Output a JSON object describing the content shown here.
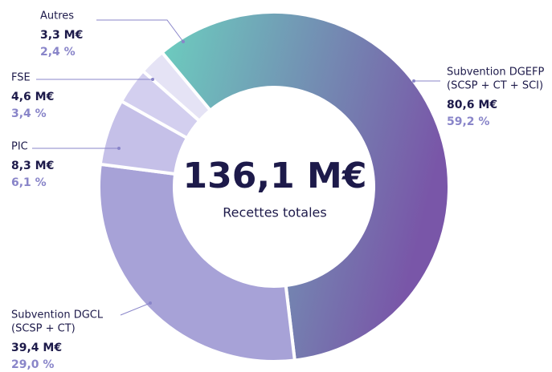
{
  "chart_data": {
    "type": "pie",
    "donut": true,
    "total": 136.1,
    "total_label": "136,1 M€",
    "subtitle": "Recettes totales",
    "categories": [
      [
        "Subvention DGEFP",
        "(SCSP + CT + SCI)"
      ],
      [
        "Subvention DGCL",
        "(SCSP + CT)"
      ],
      [
        "PIC"
      ],
      [
        "FSE"
      ],
      [
        "Autres"
      ]
    ],
    "values": [
      80.6,
      39.4,
      8.3,
      4.6,
      3.3
    ],
    "value_labels": [
      "80,6 M€",
      "39,4 M€",
      "8,3 M€",
      "4,6 M€",
      "3,3 M€"
    ],
    "shares": [
      59.2,
      29.0,
      6.1,
      3.4,
      2.4
    ],
    "share_labels": [
      "59,2 %",
      "29,0 %",
      "6,1 %",
      "3,4 %",
      "2,4 %"
    ],
    "colors": [
      "gradient",
      "#a7a2d7",
      "#c5c0e8",
      "#d3cfef",
      "#e5e3f5"
    ],
    "gradient": [
      "#6ccfbf",
      "#7956a8"
    ]
  }
}
